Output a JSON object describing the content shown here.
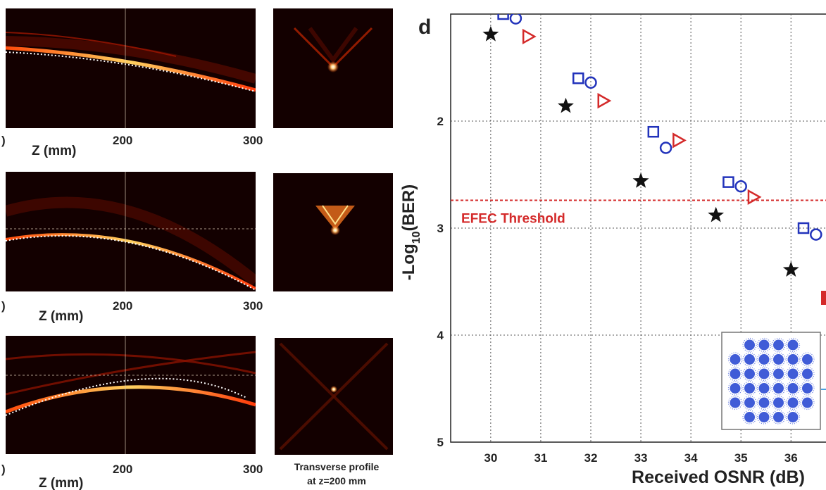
{
  "left_panels": {
    "xlabel": "Z (mm)",
    "tick_left": ")",
    "tick_mid": "200",
    "tick_right": "300",
    "tick_left_2": ")",
    "transverse_caption_line1": "Transverse profile",
    "transverse_caption_line2": "at z=200 mm"
  },
  "chart_data": {
    "type": "scatter",
    "panel_letter": "d",
    "xlabel": "Received OSNR (dB)",
    "ylabel": "-Log10(BER)",
    "ylabel_main": "-Log",
    "ylabel_sub": "10",
    "ylabel_tail": "(BER)",
    "xlim": [
      29.2,
      36.7
    ],
    "ylim": [
      1.0,
      5.0
    ],
    "y_reversed": true,
    "grid": true,
    "x_ticks": [
      30,
      31,
      32,
      33,
      34,
      35,
      36
    ],
    "y_ticks": [
      2,
      3,
      4,
      5
    ],
    "threshold": {
      "label": "EFEC Threshold",
      "value": 2.74,
      "color": "#d42a2a"
    },
    "series": [
      {
        "marker": "star",
        "color": "#111111",
        "points": [
          [
            30.0,
            1.19
          ],
          [
            31.5,
            1.86
          ],
          [
            33.0,
            2.56
          ],
          [
            34.5,
            2.88
          ],
          [
            36.0,
            3.39
          ]
        ]
      },
      {
        "marker": "square",
        "color": "#2233bb",
        "points": [
          [
            30.25,
            1.0
          ],
          [
            31.75,
            1.6
          ],
          [
            33.25,
            2.1
          ],
          [
            34.75,
            2.57
          ],
          [
            36.25,
            3.0
          ]
        ]
      },
      {
        "marker": "circle",
        "color": "#2233bb",
        "points": [
          [
            30.5,
            1.04
          ],
          [
            32.0,
            1.64
          ],
          [
            33.5,
            2.25
          ],
          [
            35.0,
            2.61
          ],
          [
            36.5,
            3.06
          ]
        ]
      },
      {
        "marker": "triangle",
        "color": "#d42a2a",
        "points": [
          [
            30.75,
            1.21
          ],
          [
            32.25,
            1.81
          ],
          [
            33.75,
            2.18
          ],
          [
            35.25,
            2.71
          ]
        ]
      }
    ]
  },
  "colors": {
    "beam": "#ff6a1a",
    "beam_dark": "#2a0000",
    "panel_bg": "#130000"
  }
}
